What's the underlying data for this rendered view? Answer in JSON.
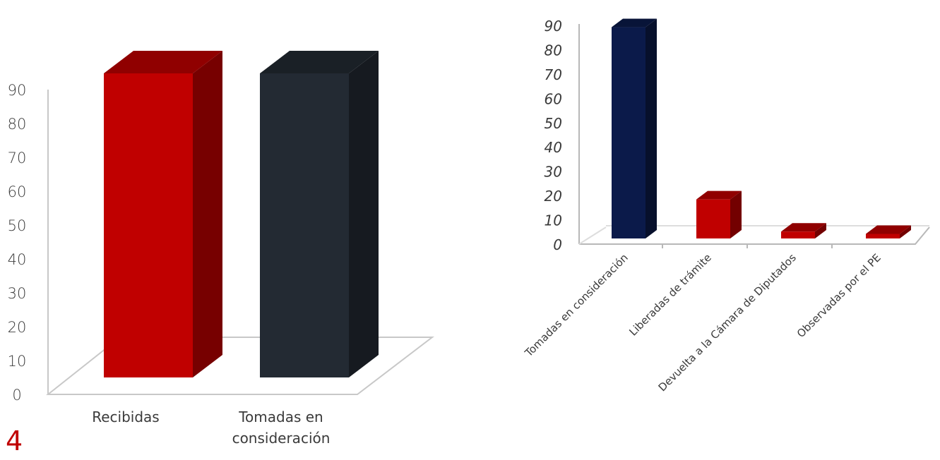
{
  "page_number": "4",
  "colors": {
    "red": "#c00000",
    "navy": "#0b1a4a",
    "slate": "#232a33"
  },
  "chart_data": [
    {
      "type": "bar",
      "categories": [
        "Recibidas",
        "Tomadas en consideración"
      ],
      "values": [
        92,
        92
      ],
      "series_colors": [
        "#c00000",
        "#232a33"
      ],
      "ylim": [
        0,
        90
      ],
      "yticks": [
        "0",
        "10",
        "20",
        "30",
        "40",
        "50",
        "60",
        "70",
        "80",
        "90"
      ],
      "grid": false
    },
    {
      "type": "bar",
      "categories": [
        "Tomadas en consideración",
        "Liberadas de trámite",
        "Devuelta a la Cámara de Diputados",
        "Observadas por el PE"
      ],
      "values": [
        92,
        17,
        3,
        2
      ],
      "series_colors": [
        "#0b1a4a",
        "#c00000",
        "#c00000",
        "#c00000"
      ],
      "ylim": [
        0,
        90
      ],
      "yticks": [
        "0",
        "10",
        "20",
        "30",
        "40",
        "50",
        "60",
        "70",
        "80",
        "90"
      ],
      "grid": false
    }
  ]
}
